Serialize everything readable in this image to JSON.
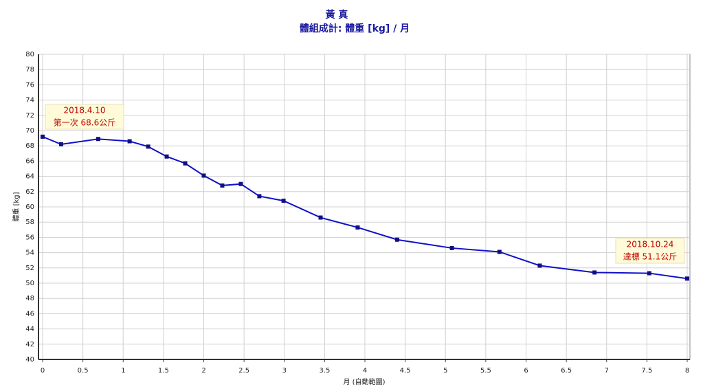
{
  "chart_data": {
    "type": "line",
    "title": "黃 真",
    "subtitle": "體組成計: 體重 [kg] / 月",
    "x_label": "月 (自動範圍)",
    "y_label": "體重 [kg]",
    "x": [
      0,
      0.23,
      0.69,
      1.08,
      1.31,
      1.54,
      1.77,
      2.0,
      2.23,
      2.46,
      2.69,
      2.99,
      3.45,
      3.91,
      4.4,
      5.08,
      5.67,
      6.17,
      6.85,
      7.53,
      8.0
    ],
    "series": [
      {
        "name": "體重",
        "color": "#1010c8",
        "values": [
          69.2,
          68.2,
          68.9,
          68.6,
          67.9,
          66.6,
          65.7,
          64.1,
          62.8,
          63.0,
          61.4,
          60.8,
          58.6,
          57.3,
          55.7,
          54.6,
          54.1,
          52.3,
          51.4,
          51.3,
          50.6
        ]
      }
    ],
    "xlim": [
      0,
      8
    ],
    "xticks": [
      0,
      0.5,
      1,
      1.5,
      2,
      2.5,
      3,
      3.5,
      4,
      4.5,
      5,
      5.5,
      6,
      6.5,
      7,
      7.5,
      8
    ],
    "ylim": [
      40,
      80
    ],
    "yticks": [
      40,
      42,
      44,
      46,
      48,
      50,
      52,
      54,
      56,
      58,
      60,
      62,
      64,
      66,
      68,
      70,
      72,
      74,
      76,
      78,
      80
    ],
    "grid": true,
    "annotations": [
      {
        "lines": [
          "2018.4.10",
          "第一次 68.6公斤"
        ]
      },
      {
        "lines": [
          "2018.10.24",
          "達標 51.1公斤"
        ]
      }
    ]
  }
}
